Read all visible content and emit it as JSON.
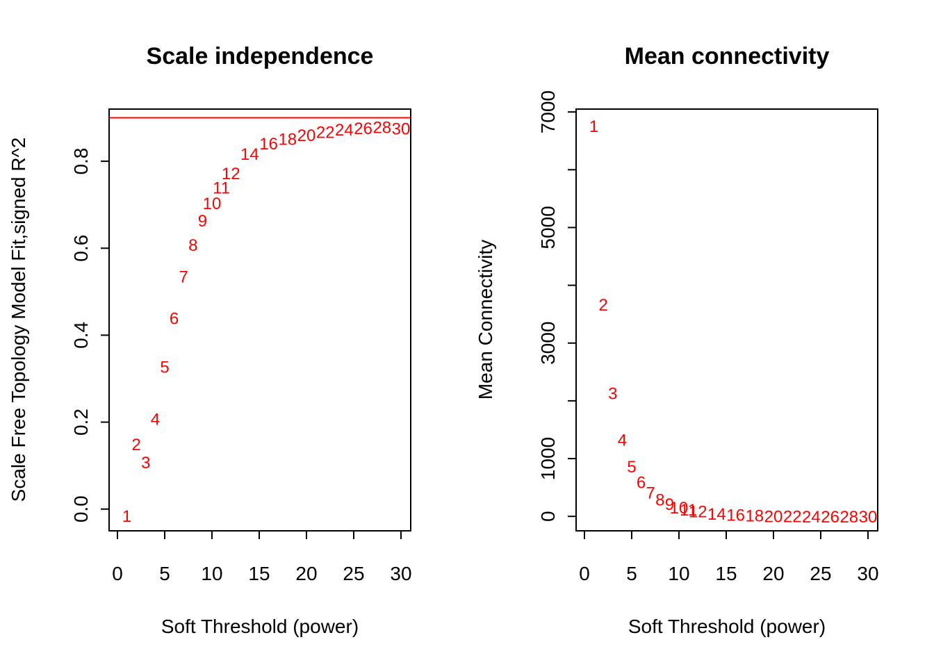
{
  "chart_data": [
    {
      "type": "scatter",
      "title": "Scale independence",
      "xlabel": "Soft Threshold (power)",
      "ylabel": "Scale Free Topology Model Fit,signed R^2",
      "xlim": [
        0,
        30
      ],
      "ylim": [
        -0.05,
        0.92
      ],
      "xticks": [
        0,
        5,
        10,
        15,
        20,
        25,
        30
      ],
      "yticks": [
        0.0,
        0.2,
        0.4,
        0.6,
        0.8
      ],
      "ytick_labels": [
        "0.0",
        "0.2",
        "0.4",
        "0.6",
        "0.8"
      ],
      "marker": "text",
      "marker_color": "#ff0000",
      "grid": false,
      "hline": {
        "y": 0.9,
        "color": "#ff0000"
      },
      "points": [
        {
          "x": 1,
          "y": -0.015,
          "label": "1"
        },
        {
          "x": 2,
          "y": 0.15,
          "label": "2"
        },
        {
          "x": 3,
          "y": 0.108,
          "label": "3"
        },
        {
          "x": 4,
          "y": 0.208,
          "label": "4"
        },
        {
          "x": 5,
          "y": 0.328,
          "label": "5"
        },
        {
          "x": 6,
          "y": 0.44,
          "label": "6"
        },
        {
          "x": 7,
          "y": 0.536,
          "label": "7"
        },
        {
          "x": 8,
          "y": 0.608,
          "label": "8"
        },
        {
          "x": 9,
          "y": 0.664,
          "label": "9"
        },
        {
          "x": 10,
          "y": 0.704,
          "label": "10"
        },
        {
          "x": 11,
          "y": 0.74,
          "label": "11"
        },
        {
          "x": 12,
          "y": 0.773,
          "label": "12"
        },
        {
          "x": 14,
          "y": 0.818,
          "label": "14"
        },
        {
          "x": 16,
          "y": 0.842,
          "label": "16"
        },
        {
          "x": 18,
          "y": 0.852,
          "label": "18"
        },
        {
          "x": 20,
          "y": 0.861,
          "label": "20"
        },
        {
          "x": 22,
          "y": 0.868,
          "label": "22"
        },
        {
          "x": 24,
          "y": 0.874,
          "label": "24"
        },
        {
          "x": 26,
          "y": 0.877,
          "label": "26"
        },
        {
          "x": 28,
          "y": 0.879,
          "label": "28"
        },
        {
          "x": 30,
          "y": 0.876,
          "label": "30"
        }
      ]
    },
    {
      "type": "scatter",
      "title": "Mean connectivity",
      "xlabel": "Soft Threshold (power)",
      "ylabel": "Mean Connectivity",
      "xlim": [
        0,
        30
      ],
      "ylim": [
        -250,
        7050
      ],
      "xticks": [
        0,
        5,
        10,
        15,
        20,
        25,
        30
      ],
      "yticks": [
        0,
        1000,
        2000,
        3000,
        4000,
        5000,
        6000,
        7000
      ],
      "ytick_labels": [
        "0",
        "1000",
        "",
        "3000",
        "",
        "5000",
        "",
        "7000"
      ],
      "marker": "text",
      "marker_color": "#ff0000",
      "grid": false,
      "points": [
        {
          "x": 1,
          "y": 6760,
          "label": "1"
        },
        {
          "x": 2,
          "y": 3670,
          "label": "2"
        },
        {
          "x": 3,
          "y": 2140,
          "label": "3"
        },
        {
          "x": 4,
          "y": 1330,
          "label": "4"
        },
        {
          "x": 5,
          "y": 870,
          "label": "5"
        },
        {
          "x": 6,
          "y": 600,
          "label": "6"
        },
        {
          "x": 7,
          "y": 420,
          "label": "7"
        },
        {
          "x": 8,
          "y": 300,
          "label": "8"
        },
        {
          "x": 9,
          "y": 220,
          "label": "9"
        },
        {
          "x": 10,
          "y": 160,
          "label": "10"
        },
        {
          "x": 11,
          "y": 120,
          "label": "11"
        },
        {
          "x": 12,
          "y": 90,
          "label": "12"
        },
        {
          "x": 14,
          "y": 50,
          "label": "14"
        },
        {
          "x": 16,
          "y": 30,
          "label": "16"
        },
        {
          "x": 18,
          "y": 18,
          "label": "18"
        },
        {
          "x": 20,
          "y": 10,
          "label": "20"
        },
        {
          "x": 22,
          "y": 6,
          "label": "22"
        },
        {
          "x": 24,
          "y": 4,
          "label": "24"
        },
        {
          "x": 26,
          "y": 2,
          "label": "26"
        },
        {
          "x": 28,
          "y": 1,
          "label": "28"
        },
        {
          "x": 30,
          "y": 1,
          "label": "30"
        }
      ]
    }
  ]
}
